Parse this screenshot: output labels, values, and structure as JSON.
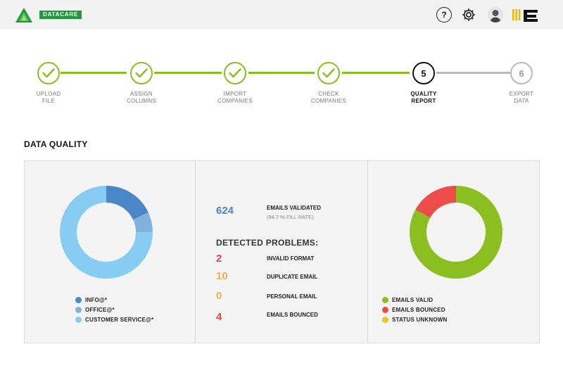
{
  "header": {
    "brand_name": "DATACARE",
    "help_glyph": "?",
    "colors": {
      "bar": "#f2f2f2",
      "brand_green": "#1f9a3a"
    }
  },
  "stepper": {
    "steps": [
      {
        "line1": "UPLOAD",
        "line2": "FILE",
        "state": "done"
      },
      {
        "line1": "ASSIGN",
        "line2": "COLUMNS",
        "state": "done"
      },
      {
        "line1": "IMPORT",
        "line2": "COMPANIES",
        "state": "done"
      },
      {
        "line1": "CHECK",
        "line2": "COMPANIES",
        "state": "done"
      },
      {
        "line1": "QUALITY",
        "line2": "REPORT",
        "state": "active",
        "number": "5"
      },
      {
        "line1": "EXPORT",
        "line2": "DATA",
        "state": "pending",
        "number": "6"
      }
    ],
    "colors": {
      "done": "#86bf1f",
      "active": "#111111",
      "pending": "#b9b9b9"
    }
  },
  "section": {
    "title": "DATA QUALITY"
  },
  "email_types": {
    "legend": [
      "INFO@*",
      "OFFICE@*",
      "CUSTOMER SERVICE@*"
    ],
    "shares": [
      18,
      7,
      75
    ],
    "colors": [
      "#4a86c8",
      "#7fb3dd",
      "#87cdf3"
    ]
  },
  "summary": {
    "validated_value": "624",
    "validated_label": "EMAILS VALIDATED",
    "validated_sub": "(94,7 % FILL RATE)",
    "problems_title": "DETECTED PROBLEMS:",
    "problems": [
      {
        "value": "2",
        "label": "INVALID FORMAT",
        "color": "#e04848"
      },
      {
        "value": "10",
        "label": "DUPLICATE EMAIL",
        "color": "#e8b34a"
      },
      {
        "value": "0",
        "label": "PERSONAL EMAIL",
        "color": "#e8b34a"
      },
      {
        "value": "4",
        "label": "EMAILS BOUNCED",
        "color": "#e04848"
      }
    ]
  },
  "email_status": {
    "legend": [
      "EMAILS VALID",
      "EMAILS BOUNCED",
      "STATUS UNKNOWN"
    ],
    "shares": [
      83,
      17,
      0
    ],
    "colors": [
      "#8bbf1f",
      "#ee4b4b",
      "#f4c21b"
    ]
  }
}
